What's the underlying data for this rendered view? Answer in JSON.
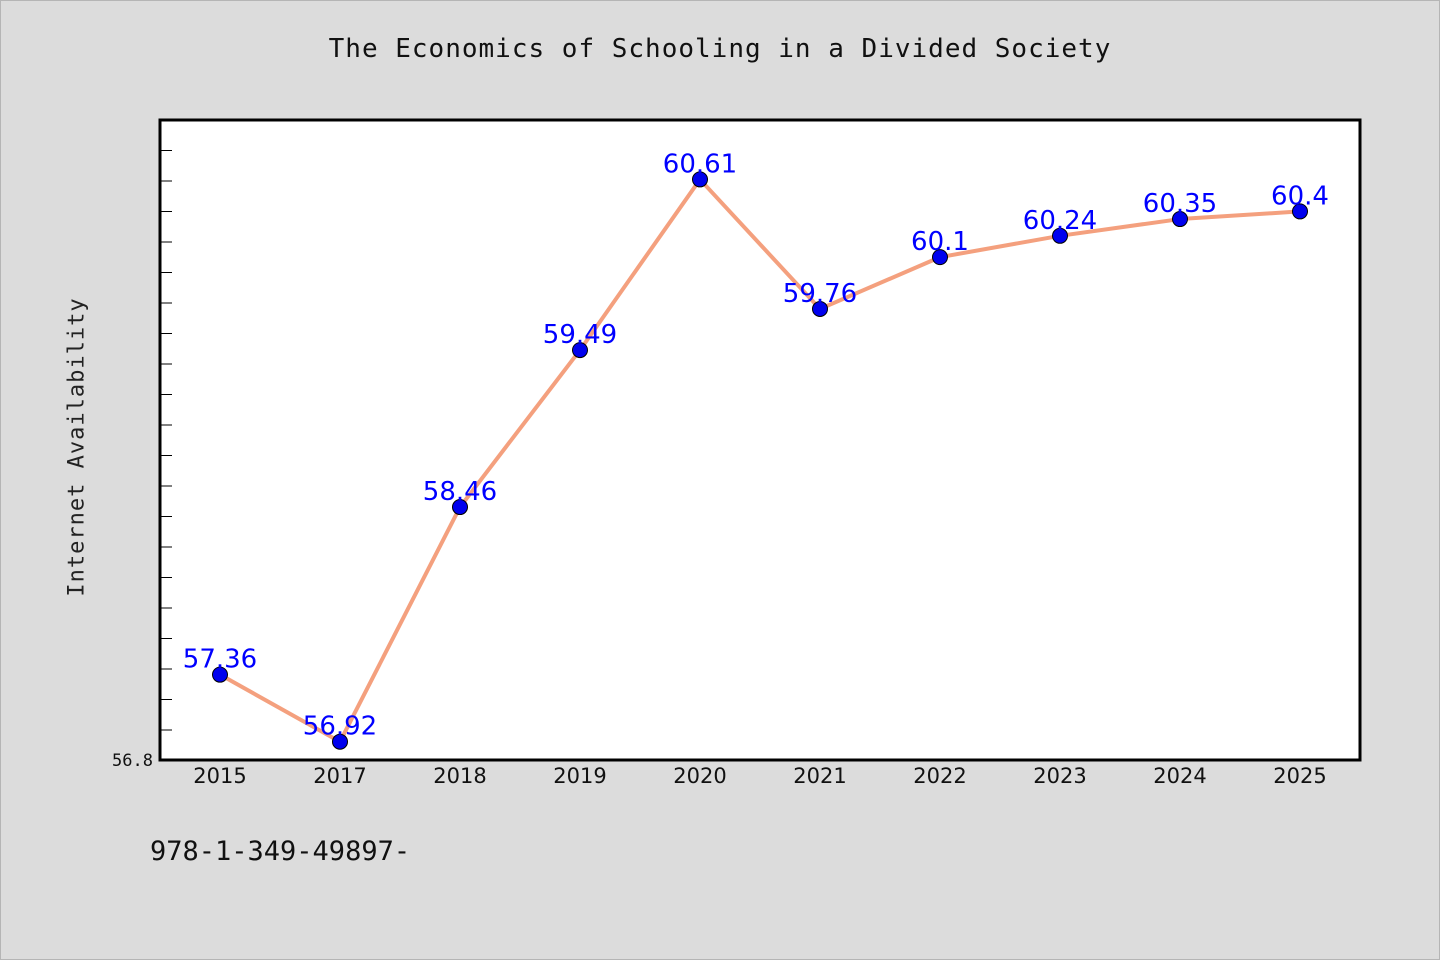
{
  "chart_data": {
    "type": "line",
    "title": "The Economics of Schooling in a Divided Society",
    "xlabel": "",
    "ylabel": "Internet Availability",
    "categories": [
      "2015",
      "2017",
      "2018",
      "2019",
      "2020",
      "2021",
      "2022",
      "2023",
      "2024",
      "2025"
    ],
    "values": [
      57.36,
      56.92,
      58.46,
      59.49,
      60.61,
      59.76,
      60.1,
      60.24,
      60.35,
      60.4
    ],
    "data_labels": [
      "57.36",
      "56.92",
      "58.46",
      "59.49",
      "60.61",
      "59.76",
      "60.1",
      "60.24",
      "60.35",
      "60.4"
    ],
    "ylim": [
      56.8,
      61.0
    ],
    "y_tick_label": "56.8",
    "grid": false,
    "line_color": "#f4a07e",
    "marker_color": "#0000ee",
    "label_color": "#0000ff"
  },
  "footer": {
    "text": "978-1-349-49897-"
  },
  "colors": {
    "background": "#dcdcdc",
    "plot_area": "#ffffff"
  }
}
